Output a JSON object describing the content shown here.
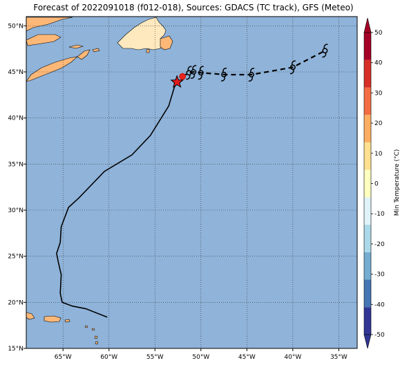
{
  "title": "Forecast of 2022091018 (f012-018), Sources: GDACS (TC track), GFS (Meteo)",
  "map": {
    "lon_range": [
      -69,
      -33
    ],
    "lat_range": [
      15,
      51
    ],
    "lon_ticks": [
      "65°W",
      "60°W",
      "55°W",
      "50°W",
      "45°W",
      "40°W",
      "35°W"
    ],
    "lat_ticks": [
      "15°N",
      "20°N",
      "25°N",
      "30°N",
      "35°N",
      "40°N",
      "45°N",
      "50°N"
    ],
    "ocean_color": "#8fb3d9",
    "land_color": "#fdb878",
    "land_cool_color": "#fee9bf",
    "grid": "dotted"
  },
  "track": {
    "past_points": [
      {
        "lon": -60.2,
        "lat": 18.4
      },
      {
        "lon": -62.5,
        "lat": 19.3
      },
      {
        "lon": -64.0,
        "lat": 19.6
      },
      {
        "lon": -65.1,
        "lat": 20.0
      },
      {
        "lon": -65.3,
        "lat": 21.0
      },
      {
        "lon": -65.2,
        "lat": 23.0
      },
      {
        "lon": -65.5,
        "lat": 24.3
      },
      {
        "lon": -65.7,
        "lat": 25.3
      },
      {
        "lon": -65.3,
        "lat": 26.5
      },
      {
        "lon": -65.2,
        "lat": 28.2
      },
      {
        "lon": -64.4,
        "lat": 30.3
      },
      {
        "lon": -63.3,
        "lat": 31.3
      },
      {
        "lon": -60.5,
        "lat": 34.2
      },
      {
        "lon": -57.5,
        "lat": 36.0
      },
      {
        "lon": -55.5,
        "lat": 38.1
      },
      {
        "lon": -53.5,
        "lat": 41.3
      },
      {
        "lon": -52.9,
        "lat": 43.3
      },
      {
        "lon": -52.6,
        "lat": 43.9
      }
    ],
    "current_position": {
      "lon": -52.6,
      "lat": 43.9
    },
    "red_marker": {
      "lon": -52.0,
      "lat": 44.5
    },
    "forecast_points": [
      {
        "lon": -52.0,
        "lat": 44.5
      },
      {
        "lon": -51.3,
        "lat": 44.9
      },
      {
        "lon": -50.8,
        "lat": 45.0
      },
      {
        "lon": -50.0,
        "lat": 44.9
      },
      {
        "lon": -47.3,
        "lat": 44.7
      },
      {
        "lon": -44.5,
        "lat": 44.7
      },
      {
        "lon": -40.0,
        "lat": 45.5
      },
      {
        "lon": -36.5,
        "lat": 47.3
      }
    ],
    "storm_symbol_lons": [
      -51.3,
      -50.8,
      -50.0,
      -47.5,
      -44.5,
      -40.0,
      -36.5
    ]
  },
  "colorbar": {
    "label": "Min Temperature (°C)",
    "ticks": [
      "-50",
      "-40",
      "-30",
      "-20",
      "-10",
      "0",
      "10",
      "20",
      "30",
      "40",
      "50"
    ],
    "colors": [
      "#313695",
      "#4575b4",
      "#74add1",
      "#abd9e9",
      "#e0f3f8",
      "#ffffbf",
      "#fee090",
      "#fdae61",
      "#f46d43",
      "#d73027",
      "#a50026"
    ]
  }
}
